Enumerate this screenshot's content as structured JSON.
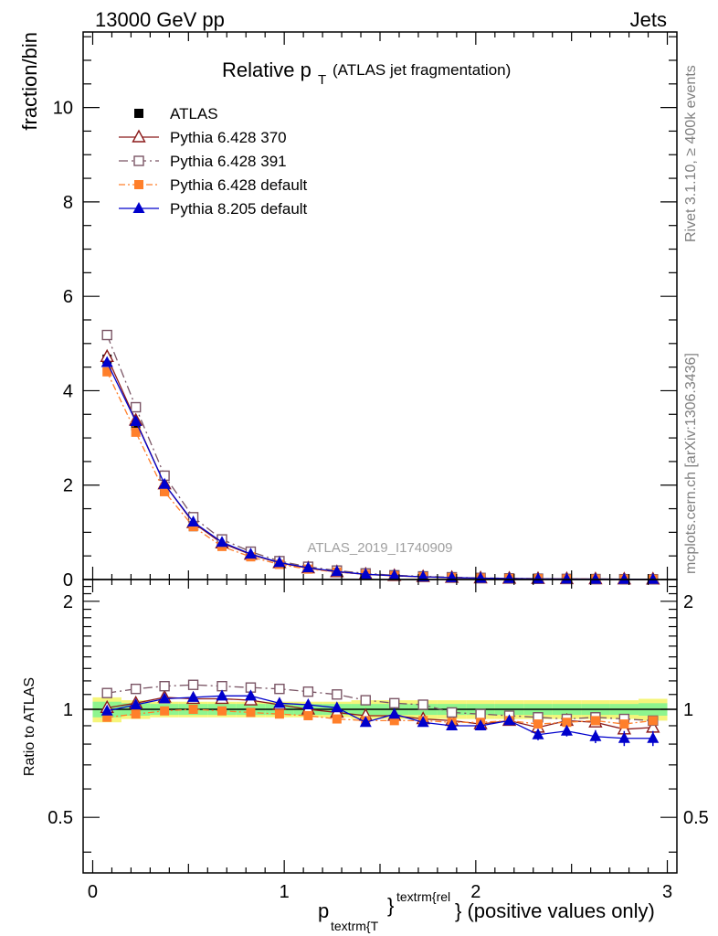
{
  "header": {
    "energy": "13000 GeV pp",
    "category": "Jets"
  },
  "side_text": {
    "rivet": "Rivet 3.1.10, ≥ 400k events",
    "source": "mcplots.cern.ch [arXiv:1306.3436]"
  },
  "watermark": "ATLAS_2019_I1740909",
  "colors": {
    "atlas": "#000000",
    "p370": "#8b1a1a",
    "p391": "#7a5565",
    "p6def": "#ff7f2a",
    "p8def": "#0000cc",
    "band_green": "#8ef58e",
    "band_yellow": "#f5f57a"
  },
  "chart_data": {
    "type": "line",
    "title_main": "Relative p",
    "title_sub": "T",
    "title_rest": "(ATLAS jet fragmentation)",
    "ylabel": "fraction/bin",
    "ratio_ylabel": "Ratio to ATLAS",
    "xlabel_p": "p",
    "xlabel_sub": "textrm{T",
    "xlabel_sup": "textrm{rel",
    "xlabel_brace": "}",
    "xlabel_rest": "} (positive values only)",
    "xlim": [
      -0.05,
      3.05
    ],
    "ylim": [
      0,
      11.6
    ],
    "ratio_ylim": [
      0.35,
      2.3
    ],
    "x_ticks": [
      "0",
      "1",
      "2",
      "3"
    ],
    "y_ticks": [
      "0",
      "2",
      "4",
      "6",
      "8",
      "10"
    ],
    "ratio_ticks": [
      "0.5",
      "1",
      "2"
    ],
    "x": [
      0.075,
      0.225,
      0.375,
      0.525,
      0.675,
      0.825,
      0.975,
      1.125,
      1.275,
      1.425,
      1.575,
      1.725,
      1.875,
      2.025,
      2.175,
      2.325,
      2.475,
      2.625,
      2.775,
      2.925
    ],
    "atlas": [
      4.67,
      3.25,
      1.87,
      1.12,
      0.72,
      0.5,
      0.34,
      0.24,
      0.17,
      0.12,
      0.085,
      0.062,
      0.045,
      0.032,
      0.024,
      0.018,
      0.013,
      0.01,
      0.007,
      0.005
    ],
    "band_green": [
      0.05,
      0.04,
      0.035,
      0.035,
      0.035,
      0.035,
      0.035,
      0.035,
      0.035,
      0.035,
      0.035,
      0.035,
      0.035,
      0.035,
      0.035,
      0.035,
      0.035,
      0.035,
      0.035,
      0.04
    ],
    "band_yellow": [
      0.08,
      0.06,
      0.05,
      0.05,
      0.05,
      0.05,
      0.05,
      0.05,
      0.05,
      0.06,
      0.06,
      0.06,
      0.06,
      0.06,
      0.06,
      0.06,
      0.06,
      0.06,
      0.06,
      0.07
    ],
    "series": [
      {
        "key": "p370",
        "name": "Pythia 6.428 370",
        "marker": "triangle-open",
        "dash": "none",
        "values": [
          4.72,
          3.37,
          2.02,
          1.2,
          0.77,
          0.53,
          0.35,
          0.24,
          0.16,
          0.11,
          0.078,
          0.056,
          0.04,
          0.029,
          0.022,
          0.016,
          0.012,
          0.009,
          0.006,
          0.0045
        ],
        "ratio": [
          1.01,
          1.04,
          1.08,
          1.07,
          1.07,
          1.06,
          1.03,
          1.0,
          0.98,
          0.96,
          0.96,
          0.94,
          0.93,
          0.91,
          0.93,
          0.89,
          0.93,
          0.92,
          0.88,
          0.89
        ],
        "ratio_err": [
          0,
          0,
          0,
          0,
          0,
          0,
          0,
          0,
          0,
          0,
          0,
          0,
          0,
          0,
          0,
          0,
          0,
          0,
          0,
          0
        ]
      },
      {
        "key": "p391",
        "name": "Pythia 6.428 391",
        "marker": "square-open",
        "dash": "10,4,2,4",
        "values": [
          5.18,
          3.65,
          2.2,
          1.32,
          0.85,
          0.59,
          0.39,
          0.27,
          0.19,
          0.13,
          0.09,
          0.067,
          0.048,
          0.034,
          0.025,
          0.018,
          0.013,
          0.0095,
          0.0068,
          0.0048
        ],
        "ratio": [
          1.11,
          1.14,
          1.16,
          1.17,
          1.16,
          1.15,
          1.14,
          1.12,
          1.1,
          1.06,
          1.04,
          1.03,
          0.98,
          0.97,
          0.96,
          0.95,
          0.94,
          0.95,
          0.94,
          0.93
        ],
        "ratio_err": [
          0,
          0,
          0,
          0,
          0,
          0,
          0,
          0,
          0,
          0,
          0,
          0,
          0,
          0,
          0,
          0,
          0,
          0,
          0,
          0
        ]
      },
      {
        "key": "p6def",
        "name": "Pythia 6.428 default",
        "marker": "square-filled",
        "dash": "7,3,2,3",
        "values": [
          4.4,
          3.12,
          1.86,
          1.12,
          0.7,
          0.48,
          0.32,
          0.22,
          0.16,
          0.11,
          0.078,
          0.058,
          0.042,
          0.03,
          0.022,
          0.017,
          0.012,
          0.0093,
          0.0064,
          0.0048
        ],
        "ratio": [
          0.95,
          0.97,
          0.99,
          1.0,
          0.99,
          0.98,
          0.97,
          0.96,
          0.94,
          0.93,
          0.93,
          0.93,
          0.92,
          0.92,
          0.93,
          0.91,
          0.92,
          0.93,
          0.91,
          0.93
        ],
        "ratio_err": [
          0,
          0,
          0,
          0,
          0,
          0,
          0,
          0,
          0,
          0,
          0,
          0,
          0,
          0,
          0,
          0,
          0,
          0,
          0,
          0
        ]
      },
      {
        "key": "p8def",
        "name": "Pythia 8.205 default",
        "marker": "triangle-filled",
        "dash": "none",
        "values": [
          4.6,
          3.35,
          2.02,
          1.22,
          0.79,
          0.54,
          0.36,
          0.25,
          0.17,
          0.11,
          0.082,
          0.058,
          0.041,
          0.029,
          0.022,
          0.015,
          0.011,
          0.0084,
          0.0059,
          0.0042
        ],
        "ratio": [
          0.99,
          1.03,
          1.07,
          1.08,
          1.09,
          1.09,
          1.04,
          1.03,
          1.01,
          0.92,
          0.97,
          0.92,
          0.9,
          0.9,
          0.93,
          0.85,
          0.87,
          0.84,
          0.83,
          0.83
        ],
        "ratio_err": [
          0.01,
          0.01,
          0.01,
          0.01,
          0.01,
          0.01,
          0.01,
          0.01,
          0.01,
          0.015,
          0.015,
          0.015,
          0.02,
          0.02,
          0.025,
          0.03,
          0.03,
          0.035,
          0.04,
          0.04
        ]
      }
    ],
    "legend": {
      "placement": "top-left",
      "atlas_label": "ATLAS"
    }
  }
}
